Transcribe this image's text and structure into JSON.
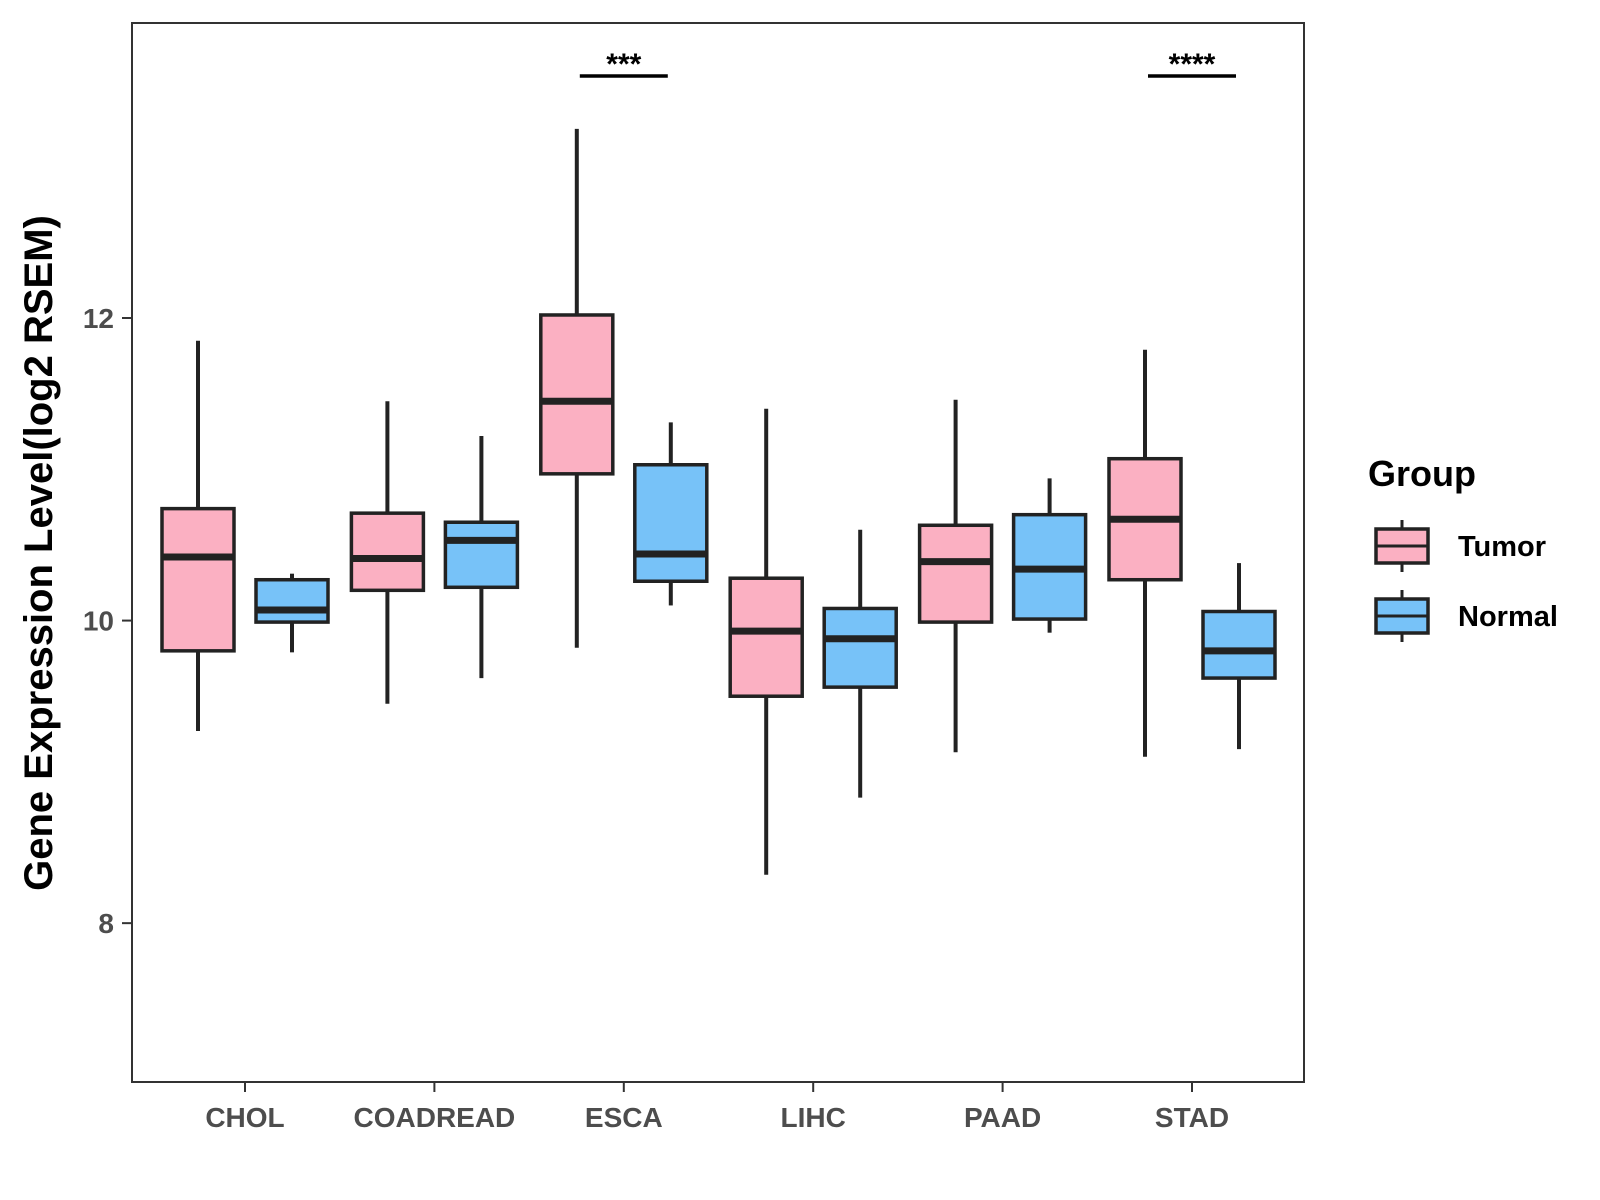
{
  "chart_data": {
    "type": "boxplot",
    "title": "",
    "xlabel": "",
    "ylabel": "Gene Expression Level(log2 RSEM)",
    "ylim": [
      6.95,
      13.95
    ],
    "yticks": [
      8,
      10,
      12
    ],
    "grid": false,
    "legend": {
      "title": "Group",
      "position": "right",
      "entries": [
        {
          "name": "Tumor",
          "color": "#FBB0C2"
        },
        {
          "name": "Normal",
          "color": "#77C2F8"
        }
      ]
    },
    "categories": [
      "CHOL",
      "COADREAD",
      "ESCA",
      "LIHC",
      "PAAD",
      "STAD"
    ],
    "series": [
      {
        "name": "Tumor",
        "color": "#FBB0C2",
        "boxes": [
          {
            "min": 9.27,
            "q1": 9.8,
            "median": 10.42,
            "q3": 10.74,
            "max": 11.85
          },
          {
            "min": 9.45,
            "q1": 10.2,
            "median": 10.41,
            "q3": 10.71,
            "max": 11.45
          },
          {
            "min": 9.82,
            "q1": 10.97,
            "median": 11.45,
            "q3": 12.02,
            "max": 13.25
          },
          {
            "min": 8.32,
            "q1": 9.5,
            "median": 9.93,
            "q3": 10.28,
            "max": 11.4
          },
          {
            "min": 9.13,
            "q1": 9.99,
            "median": 10.39,
            "q3": 10.63,
            "max": 11.46
          },
          {
            "min": 9.1,
            "q1": 10.27,
            "median": 10.67,
            "q3": 11.07,
            "max": 11.79
          }
        ]
      },
      {
        "name": "Normal",
        "color": "#77C2F8",
        "boxes": [
          {
            "min": 9.79,
            "q1": 9.99,
            "median": 10.07,
            "q3": 10.27,
            "max": 10.31
          },
          {
            "min": 9.62,
            "q1": 10.22,
            "median": 10.53,
            "q3": 10.65,
            "max": 11.22
          },
          {
            "min": 10.1,
            "q1": 10.26,
            "median": 10.44,
            "q3": 11.03,
            "max": 11.31
          },
          {
            "min": 8.83,
            "q1": 9.56,
            "median": 9.88,
            "q3": 10.08,
            "max": 10.6
          },
          {
            "min": 9.92,
            "q1": 10.01,
            "median": 10.34,
            "q3": 10.7,
            "max": 10.94
          },
          {
            "min": 9.15,
            "q1": 9.62,
            "median": 9.8,
            "q3": 10.06,
            "max": 10.38
          }
        ]
      }
    ],
    "annotations": [
      {
        "category": "ESCA",
        "label": "***",
        "y": 13.6
      },
      {
        "category": "STAD",
        "label": "****",
        "y": 13.6
      }
    ]
  }
}
